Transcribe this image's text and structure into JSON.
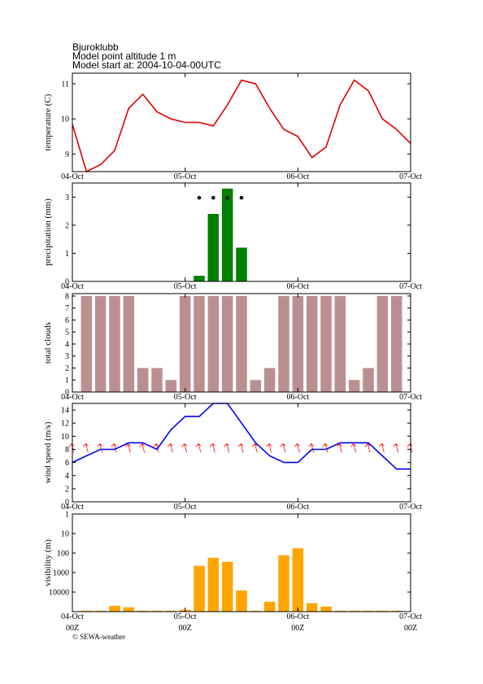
{
  "header": {
    "station": "Bjuroklubb",
    "altitude": "Model point altitude  1 m",
    "model_start": "Model start at: 2004-10-04-00UTC"
  },
  "footer": "© SEWA-weather",
  "chart_data": [
    {
      "type": "line",
      "ylabel": "temperature (C)",
      "color": "#e00000",
      "x": [
        0,
        3,
        6,
        9,
        12,
        15,
        18,
        21,
        24,
        27,
        30,
        33,
        36,
        39,
        42,
        45,
        48,
        51,
        54,
        57,
        60,
        63,
        66,
        69,
        72
      ],
      "values": [
        9.85,
        8.5,
        8.7,
        9.1,
        10.3,
        10.7,
        10.2,
        10.0,
        9.9,
        9.9,
        9.8,
        10.4,
        11.1,
        11.0,
        10.3,
        9.7,
        9.5,
        8.9,
        9.2,
        10.4,
        11.1,
        10.8,
        10.0,
        9.7,
        9.3
      ],
      "xlim": [
        0,
        72
      ],
      "xticks": [
        {
          "value": 0,
          "label": "04-Oct"
        },
        {
          "value": 24,
          "label": "05-Oct"
        },
        {
          "value": 48,
          "label": "06-Oct"
        },
        {
          "value": 72,
          "label": "07-Oct"
        }
      ],
      "ylim": [
        8.5,
        11.3
      ],
      "yticks": [
        9,
        10,
        11
      ]
    },
    {
      "type": "bar",
      "ylabel": "precipitation (mm)",
      "color": "#008000",
      "x": [
        27,
        30,
        33,
        36
      ],
      "values": [
        0.2,
        2.4,
        3.3,
        1.2
      ],
      "symbols": [
        27,
        30,
        33,
        36
      ],
      "xlim": [
        0,
        72
      ],
      "xticks": [
        {
          "value": 0,
          "label": "04-Oct"
        },
        {
          "value": 24,
          "label": "05-Oct"
        },
        {
          "value": 48,
          "label": "06-Oct"
        },
        {
          "value": 72,
          "label": "07-Oct"
        }
      ],
      "ylim": [
        0,
        3.5
      ],
      "yticks": [
        0,
        1,
        2,
        3
      ]
    },
    {
      "type": "bar",
      "ylabel": "total clouds",
      "color": "#bc8f8f",
      "x": [
        3,
        6,
        9,
        12,
        15,
        18,
        21,
        24,
        27,
        30,
        33,
        36,
        39,
        42,
        45,
        48,
        51,
        54,
        57,
        60,
        63,
        66,
        69
      ],
      "values": [
        8,
        8,
        8,
        8,
        2,
        2,
        1,
        8,
        8,
        8,
        8,
        8,
        1,
        2,
        8,
        8,
        8,
        8,
        8,
        1,
        2,
        8,
        8
      ],
      "xlim": [
        0,
        72
      ],
      "xticks": [
        {
          "value": 0,
          "label": "04-Oct"
        },
        {
          "value": 24,
          "label": "05-Oct"
        },
        {
          "value": 48,
          "label": "06-Oct"
        },
        {
          "value": 72,
          "label": "07-Oct"
        }
      ],
      "ylim": [
        0,
        8.2
      ],
      "yticks": [
        0,
        1,
        2,
        3,
        4,
        5,
        6,
        7,
        8
      ]
    },
    {
      "type": "line",
      "ylabel": "wind speed (m/s)",
      "color": "#0000ff",
      "arrows": true,
      "arrow_color": "#ff0000",
      "x": [
        0,
        3,
        6,
        9,
        12,
        15,
        18,
        21,
        24,
        27,
        30,
        33,
        36,
        39,
        42,
        45,
        48,
        51,
        54,
        57,
        60,
        63,
        66,
        69,
        72
      ],
      "values": [
        6,
        7,
        8,
        8,
        9,
        9,
        8,
        11,
        13,
        13,
        15,
        15,
        12,
        9,
        7,
        6,
        6,
        8,
        8,
        9,
        9,
        9,
        7,
        5,
        5
      ],
      "xlim": [
        0,
        72
      ],
      "xticks": [
        {
          "value": 0,
          "label": "04-Oct"
        },
        {
          "value": 24,
          "label": "05-Oct"
        },
        {
          "value": 48,
          "label": "06-Oct"
        },
        {
          "value": 72,
          "label": "07-Oct"
        }
      ],
      "ylim": [
        0,
        15
      ],
      "yticks": [
        0,
        2,
        4,
        6,
        8,
        10,
        12,
        14
      ]
    },
    {
      "type": "bar",
      "ylabel": "visibility (m)",
      "color": "#ffa500",
      "log": true,
      "inverted": true,
      "x": [
        3,
        6,
        9,
        12,
        15,
        18,
        21,
        24,
        27,
        30,
        33,
        36,
        39,
        42,
        45,
        48,
        51,
        54,
        57,
        60,
        63,
        66,
        69
      ],
      "values": [
        90000,
        90000,
        50000,
        60000,
        90000,
        90000,
        90000,
        80000,
        450,
        175,
        280,
        8300,
        90000,
        31000,
        130,
        57,
        37000,
        55000,
        90000,
        90000,
        90000,
        90000,
        90000
      ],
      "xlim": [
        0,
        72
      ],
      "xticks": [
        {
          "value": 0,
          "label": "04-Oct"
        },
        {
          "value": 24,
          "label": "05-Oct"
        },
        {
          "value": 48,
          "label": "06-Oct"
        },
        {
          "value": 72,
          "label": "07-Oct"
        }
      ],
      "xticks_sub": [
        "00Z",
        "00Z",
        "00Z",
        "00Z"
      ],
      "ylim": [
        1,
        100000
      ],
      "yticks": [
        1,
        10,
        100,
        1000,
        10000
      ]
    }
  ]
}
